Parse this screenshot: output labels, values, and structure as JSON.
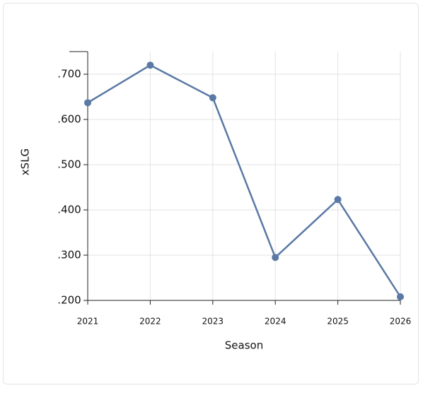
{
  "chart_data": {
    "type": "line",
    "x_label": "Season",
    "y_label": "xSLG",
    "x": [
      2021,
      2022,
      2023,
      2024,
      2025,
      2026
    ],
    "values": [
      0.637,
      0.72,
      0.648,
      0.295,
      0.423,
      0.208
    ],
    "color": "#5a79a5",
    "xlim": [
      2021,
      2026
    ],
    "xticks": [
      2021,
      2022,
      2023,
      2024,
      2025,
      2026
    ],
    "ylim": [
      0.2,
      0.75
    ],
    "yticks": [
      {
        "value": 0.2,
        "label": ".200"
      },
      {
        "value": 0.3,
        "label": ".300"
      },
      {
        "value": 0.4,
        "label": ".400"
      },
      {
        "value": 0.5,
        "label": ".500"
      },
      {
        "value": 0.6,
        "label": ".600"
      },
      {
        "value": 0.7,
        "label": ".700"
      }
    ],
    "grid": true
  }
}
